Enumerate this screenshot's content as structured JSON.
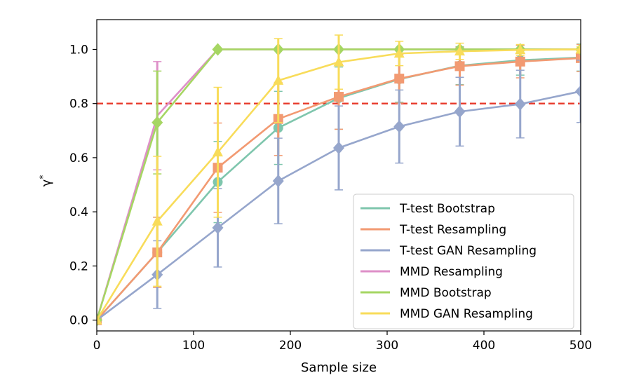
{
  "chart_data": {
    "type": "line",
    "title": "",
    "xlabel": "Sample size",
    "ylabel": "γ*",
    "xlim": [
      0,
      500
    ],
    "ylim": [
      -0.04,
      1.11
    ],
    "xticks": [
      0,
      100,
      200,
      300,
      400,
      500
    ],
    "yticks": [
      0.0,
      0.2,
      0.4,
      0.6,
      0.8,
      1.0
    ],
    "x": [
      0,
      62.5,
      125,
      187.5,
      250,
      312.5,
      375,
      437.5,
      500
    ],
    "reference_line": {
      "y": 0.8,
      "color": "#e8392a",
      "style": "dashed"
    },
    "legend_position": "lower right",
    "grid": false,
    "series": [
      {
        "name": "T-test Bootstrap",
        "color": "#7fc6ad",
        "marker": "circle",
        "values": [
          0.0,
          0.25,
          0.51,
          0.71,
          0.82,
          0.89,
          0.94,
          0.96,
          0.97
        ],
        "error": [
          0.0,
          0.13,
          0.15,
          0.135,
          0.115,
          0.085,
          0.07,
          0.055,
          0.05
        ]
      },
      {
        "name": "T-test Resampling",
        "color": "#f29a72",
        "marker": "square",
        "values": [
          0.0,
          0.25,
          0.563,
          0.743,
          0.825,
          0.892,
          0.938,
          0.955,
          0.968
        ],
        "error": [
          0.0,
          0.13,
          0.165,
          0.135,
          0.12,
          0.09,
          0.07,
          0.06,
          0.05
        ]
      },
      {
        "name": "T-test GAN Resampling",
        "color": "#96a6cc",
        "marker": "diamond",
        "values": [
          0.0,
          0.168,
          0.341,
          0.514,
          0.636,
          0.715,
          0.77,
          0.798,
          0.845
        ],
        "error": [
          0.0,
          0.125,
          0.145,
          0.158,
          0.155,
          0.135,
          0.127,
          0.125,
          0.115
        ]
      },
      {
        "name": "MMD Resampling",
        "color": "#de8fc8",
        "marker": "none",
        "values": [
          0.0,
          0.755,
          1.0,
          1.0,
          1.0,
          1.0,
          1.0,
          1.0,
          1.0
        ],
        "error": [
          0.0,
          0.2,
          0.0,
          0.0,
          0.0,
          0.0,
          0.0,
          0.0,
          0.0
        ]
      },
      {
        "name": "MMD Bootstrap",
        "color": "#a6d663",
        "marker": "diamond",
        "values": [
          0.0,
          0.73,
          1.0,
          1.0,
          1.0,
          1.0,
          1.0,
          1.0,
          1.0
        ],
        "error": [
          0.0,
          0.19,
          0.0,
          0.0,
          0.0,
          0.0,
          0.0,
          0.0,
          0.0
        ]
      },
      {
        "name": "MMD GAN Resampling",
        "color": "#f8dc5a",
        "marker": "triangle",
        "values": [
          0.0,
          0.365,
          0.62,
          0.885,
          0.953,
          0.985,
          0.993,
          0.998,
          1.0
        ],
        "error": [
          0.0,
          0.24,
          0.24,
          0.155,
          0.1,
          0.045,
          0.03,
          0.02,
          0.01
        ]
      }
    ]
  }
}
